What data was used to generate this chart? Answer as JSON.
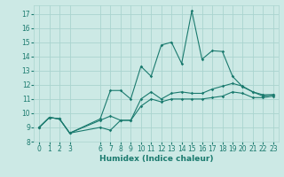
{
  "x_ticks": [
    0,
    1,
    2,
    3,
    6,
    7,
    8,
    9,
    10,
    11,
    12,
    13,
    14,
    15,
    16,
    17,
    18,
    19,
    20,
    21,
    22,
    23
  ],
  "xlabel": "Humidex (Indice chaleur)",
  "ylim": [
    8.0,
    17.6
  ],
  "xlim": [
    -0.5,
    23.5
  ],
  "yticks": [
    8,
    9,
    10,
    11,
    12,
    13,
    14,
    15,
    16,
    17
  ],
  "bg_color": "#cce9e5",
  "grid_color": "#aad4cf",
  "line_color": "#1a7a6e",
  "line1_x": [
    0,
    1,
    2,
    3,
    6,
    7,
    8,
    9,
    10,
    11,
    12,
    13,
    14,
    15,
    16,
    17,
    18,
    19,
    20,
    21,
    22,
    23
  ],
  "line1_y": [
    9.0,
    9.7,
    9.6,
    8.6,
    9.0,
    8.8,
    9.5,
    9.5,
    10.5,
    11.0,
    10.8,
    11.0,
    11.0,
    11.0,
    11.0,
    11.1,
    11.2,
    11.5,
    11.4,
    11.1,
    11.1,
    11.2
  ],
  "line2_x": [
    0,
    1,
    2,
    3,
    6,
    7,
    8,
    9,
    10,
    11,
    12,
    13,
    14,
    15,
    16,
    17,
    18,
    19,
    20,
    21,
    22,
    23
  ],
  "line2_y": [
    9.0,
    9.7,
    9.6,
    8.6,
    9.5,
    9.8,
    9.5,
    9.5,
    11.0,
    11.5,
    11.0,
    11.4,
    11.5,
    11.4,
    11.4,
    11.7,
    11.9,
    12.1,
    11.9,
    11.5,
    11.3,
    11.3
  ],
  "line3_x": [
    0,
    1,
    2,
    3,
    6,
    7,
    8,
    9,
    10,
    11,
    12,
    13,
    14,
    15,
    16,
    17,
    18,
    19,
    20,
    21,
    22,
    23
  ],
  "line3_y": [
    9.0,
    9.7,
    9.6,
    8.6,
    9.6,
    11.6,
    11.6,
    11.0,
    13.3,
    12.6,
    14.8,
    15.0,
    13.5,
    17.2,
    13.8,
    14.4,
    14.35,
    12.6,
    11.85,
    11.5,
    11.2,
    11.3
  ]
}
